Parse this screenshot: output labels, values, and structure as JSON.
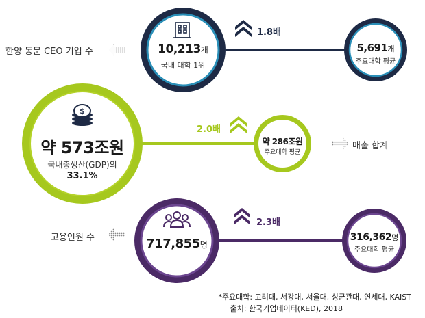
{
  "colors": {
    "navy": "#1e2a45",
    "navy_ring": "#2a8fb8",
    "green": "#a6c81e",
    "green_dark": "#b5d32a",
    "purple": "#4b2a66",
    "purple_ring": "#6c4690",
    "arrow_grey": "#8a8a8a"
  },
  "icons": [
    "building-icon",
    "coins-icon",
    "people-icon",
    "chevron-up-icon",
    "dotted-arrow-icon"
  ],
  "rows": [
    {
      "label": "한양 동문 CEO 기업 수",
      "main_value": "10,213",
      "main_unit": "개",
      "main_sub": "국내 대학 1위",
      "ratio": "1.8배",
      "avg_value": "5,691",
      "avg_unit": "개",
      "avg_sub": "주요대학 평균"
    },
    {
      "label": "매출 합계",
      "main_value": "약 573조원",
      "main_sub_1": "국내총생산(GDP)의",
      "main_sub_2": "33.1%",
      "ratio": "2.0배",
      "avg_value": "약 286조원",
      "avg_sub": "주요대학 평균"
    },
    {
      "label": "고용인원 수",
      "main_value": "717,855",
      "main_unit": "명",
      "ratio": "2.3배",
      "avg_value": "316,362",
      "avg_unit": "명",
      "avg_sub": "주요대학 평균"
    }
  ],
  "footnote": {
    "universities": "*주요대학: 고려대, 서강대, 서울대, 성균관대, 연세대, KAIST",
    "source": "출처: 한국기업데이터(KED), 2018"
  }
}
